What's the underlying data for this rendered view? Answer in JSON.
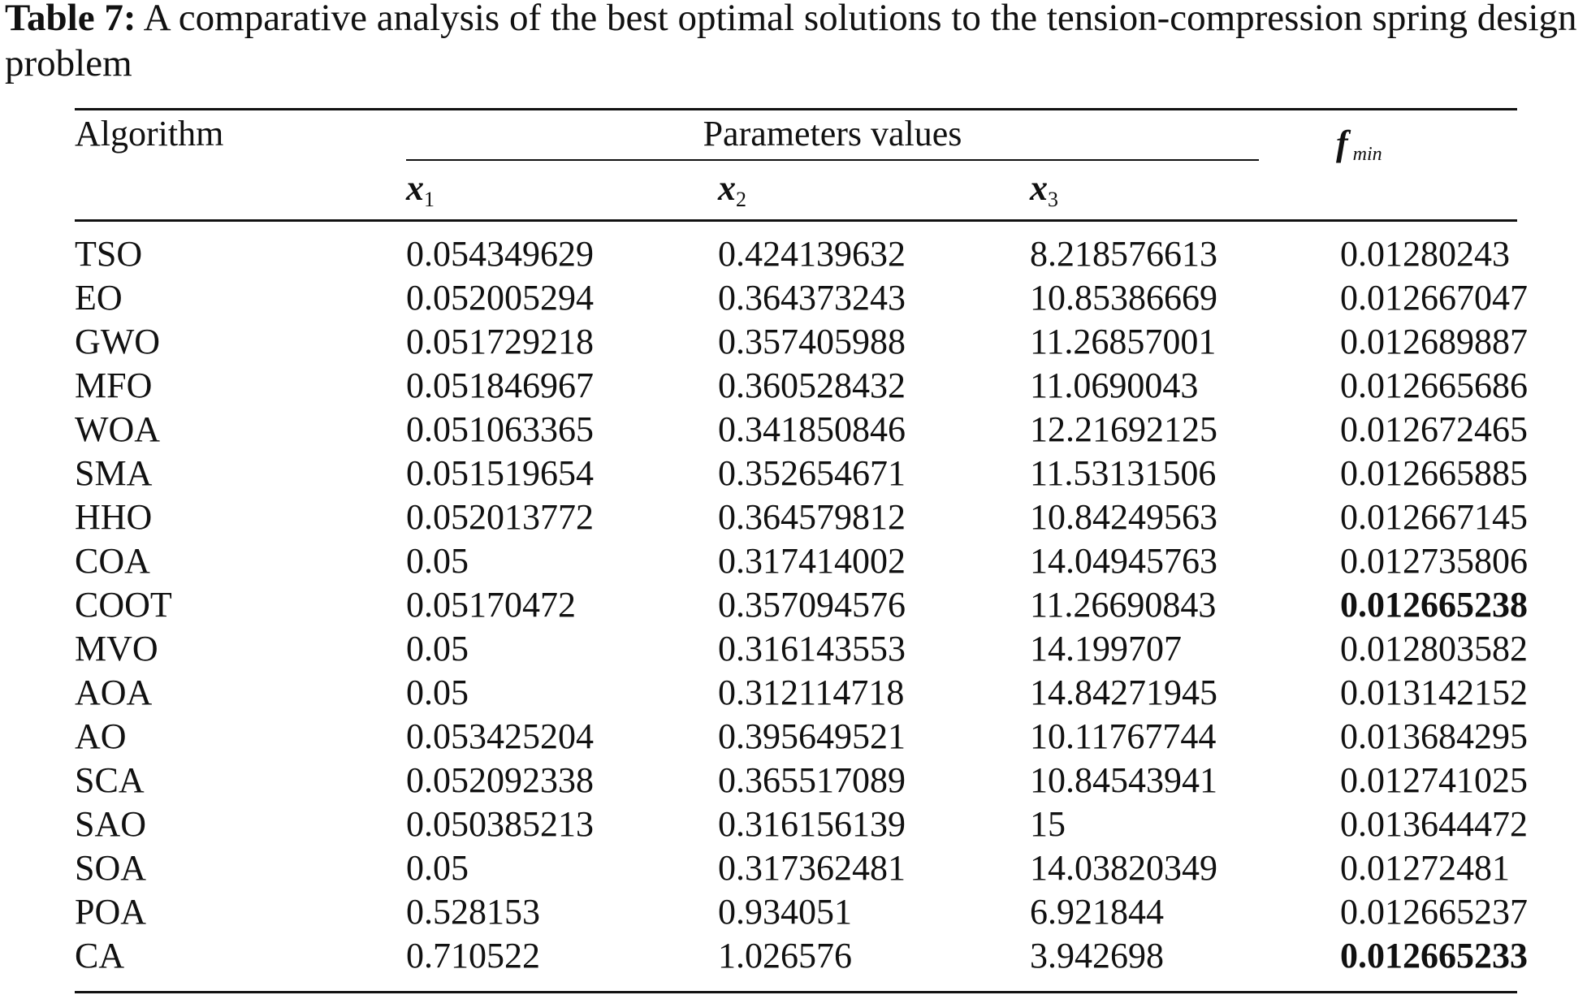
{
  "caption": {
    "label": "Table 7:",
    "text": "A comparative analysis of the best optimal solutions to the tension-compression spring design problem"
  },
  "table": {
    "headers": {
      "algorithm": "Algorithm",
      "parameters_group": "Parameters values",
      "x1": "x",
      "x1_sub": "1",
      "x2": "x",
      "x2_sub": "2",
      "x3": "x",
      "x3_sub": "3",
      "fmin": "f",
      "fmin_sub": "min"
    },
    "rows": [
      {
        "algorithm": "TSO",
        "x1": "0.054349629",
        "x2": "0.424139632",
        "x3": "8.218576613",
        "fmin": "0.01280243",
        "bold": false
      },
      {
        "algorithm": "EO",
        "x1": "0.052005294",
        "x2": "0.364373243",
        "x3": "10.85386669",
        "fmin": "0.012667047",
        "bold": false
      },
      {
        "algorithm": "GWO",
        "x1": "0.051729218",
        "x2": "0.357405988",
        "x3": "11.26857001",
        "fmin": "0.012689887",
        "bold": false
      },
      {
        "algorithm": "MFO",
        "x1": "0.051846967",
        "x2": "0.360528432",
        "x3": "11.0690043",
        "fmin": "0.012665686",
        "bold": false
      },
      {
        "algorithm": "WOA",
        "x1": "0.051063365",
        "x2": "0.341850846",
        "x3": "12.21692125",
        "fmin": "0.012672465",
        "bold": false
      },
      {
        "algorithm": "SMA",
        "x1": "0.051519654",
        "x2": "0.352654671",
        "x3": "11.53131506",
        "fmin": "0.012665885",
        "bold": false
      },
      {
        "algorithm": "HHO",
        "x1": "0.052013772",
        "x2": "0.364579812",
        "x3": "10.84249563",
        "fmin": "0.012667145",
        "bold": false
      },
      {
        "algorithm": "COA",
        "x1": "0.05",
        "x2": "0.317414002",
        "x3": "14.04945763",
        "fmin": "0.012735806",
        "bold": false
      },
      {
        "algorithm": "COOT",
        "x1": "0.05170472",
        "x2": "0.357094576",
        "x3": "11.26690843",
        "fmin": "0.012665238",
        "bold": true
      },
      {
        "algorithm": "MVO",
        "x1": "0.05",
        "x2": "0.316143553",
        "x3": "14.199707",
        "fmin": "0.012803582",
        "bold": false
      },
      {
        "algorithm": "AOA",
        "x1": "0.05",
        "x2": "0.312114718",
        "x3": "14.84271945",
        "fmin": "0.013142152",
        "bold": false
      },
      {
        "algorithm": "AO",
        "x1": "0.053425204",
        "x2": "0.395649521",
        "x3": "10.11767744",
        "fmin": "0.013684295",
        "bold": false
      },
      {
        "algorithm": "SCA",
        "x1": "0.052092338",
        "x2": "0.365517089",
        "x3": "10.84543941",
        "fmin": "0.012741025",
        "bold": false
      },
      {
        "algorithm": "SAO",
        "x1": "0.050385213",
        "x2": "0.316156139",
        "x3": "15",
        "fmin": "0.013644472",
        "bold": false
      },
      {
        "algorithm": "SOA",
        "x1": "0.05",
        "x2": "0.317362481",
        "x3": "14.03820349",
        "fmin": "0.01272481",
        "bold": false
      },
      {
        "algorithm": "POA",
        "x1": "0.528153",
        "x2": "0.934051",
        "x3": "6.921844",
        "fmin": "0.012665237",
        "bold": false
      },
      {
        "algorithm": "CA",
        "x1": "0.710522",
        "x2": "1.026576",
        "x3": "3.942698",
        "fmin": "0.012665233",
        "bold": true
      }
    ]
  }
}
